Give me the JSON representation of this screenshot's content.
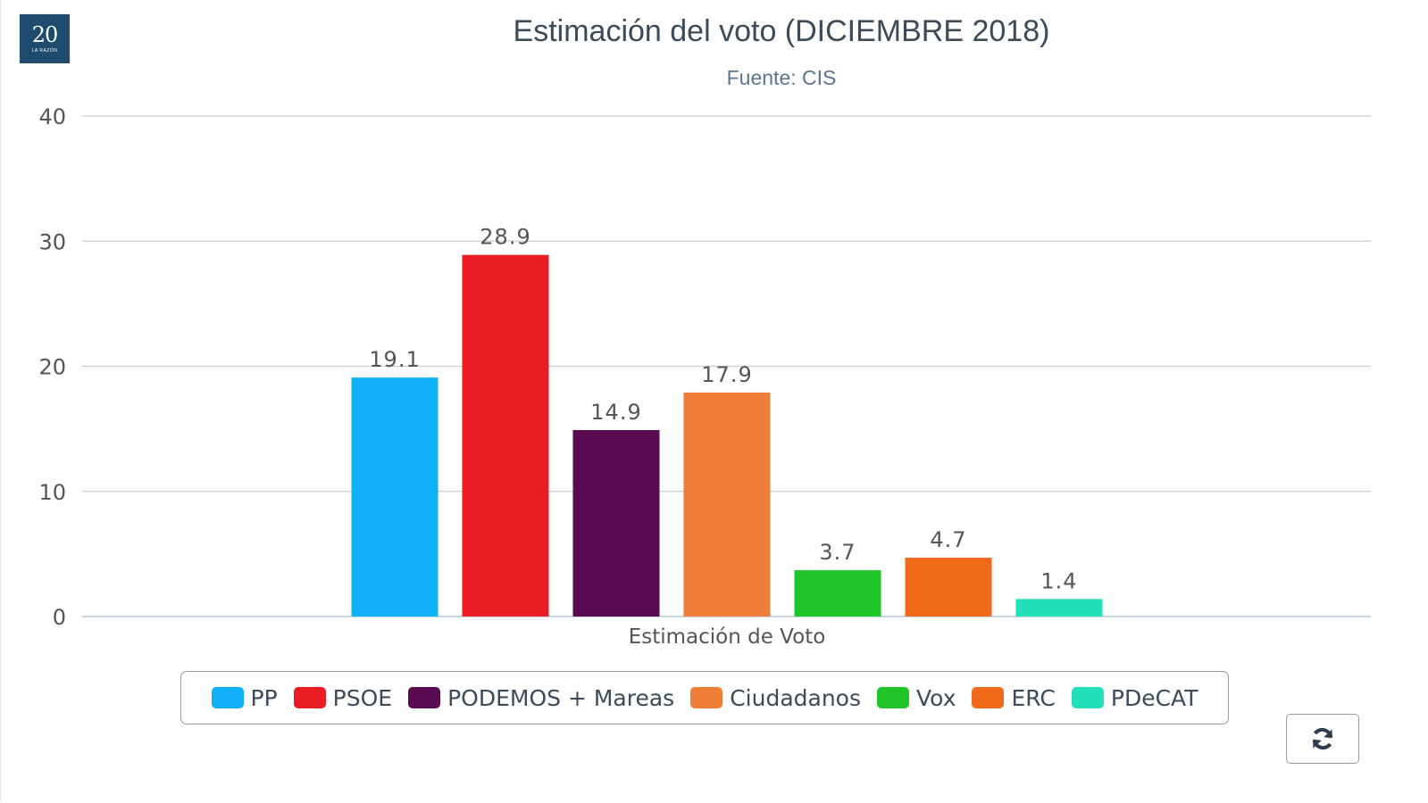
{
  "logo": {
    "number": "20",
    "caption": "LA RAZÓN"
  },
  "icons": {
    "reload": "refresh-icon"
  },
  "chart_data": {
    "type": "bar",
    "title": "Estimación del voto (DICIEMBRE 2018)",
    "subtitle": "Fuente: CIS",
    "xlabel": "Estimación de Voto",
    "ylabel": "",
    "ylim": [
      0,
      40
    ],
    "yticks": [
      "0",
      "10",
      "20",
      "30",
      "40"
    ],
    "grid": true,
    "legend_position": "bottom",
    "categories": [
      "Estimación de Voto"
    ],
    "series": [
      {
        "name": "PP",
        "values": [
          19.1
        ],
        "color": "#0fb0f5",
        "label": "19.1"
      },
      {
        "name": "PSOE",
        "values": [
          28.9
        ],
        "color": "#ea1c24",
        "label": "28.9"
      },
      {
        "name": "PODEMOS + Mareas",
        "values": [
          14.9
        ],
        "color": "#590b52",
        "label": "14.9"
      },
      {
        "name": "Ciudadanos",
        "values": [
          17.9
        ],
        "color": "#ef7e39",
        "label": "17.9"
      },
      {
        "name": "Vox",
        "values": [
          3.7
        ],
        "color": "#20c529",
        "label": "3.7"
      },
      {
        "name": "ERC",
        "values": [
          4.7
        ],
        "color": "#f06a1c",
        "label": "4.7"
      },
      {
        "name": "PDeCAT",
        "values": [
          1.4
        ],
        "color": "#22e0ba",
        "label": "1.4"
      }
    ]
  }
}
